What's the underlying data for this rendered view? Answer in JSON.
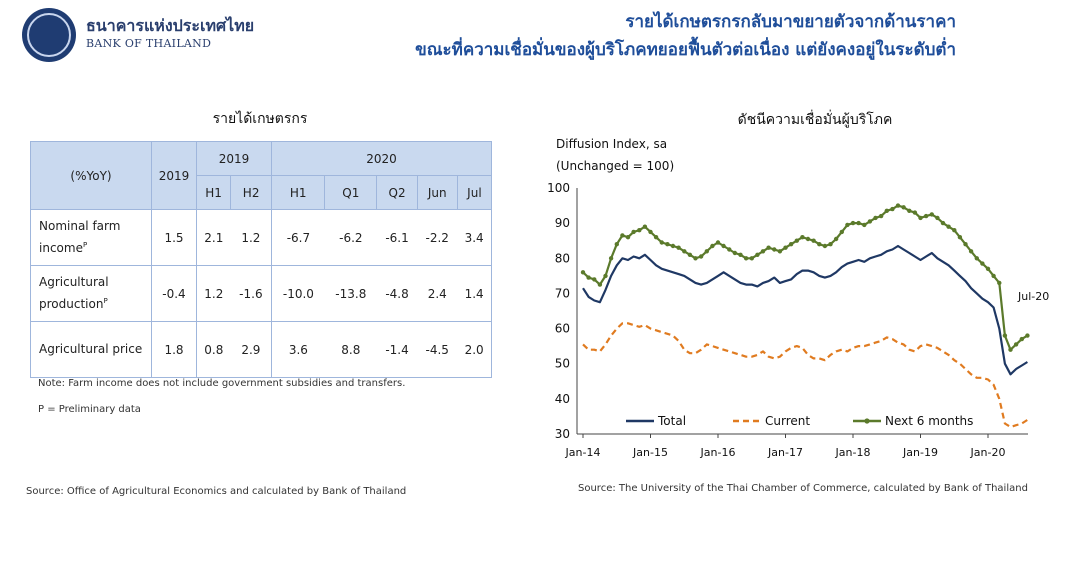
{
  "header": {
    "bank_name_th": "ธนาคารแห่งประเทศไทย",
    "bank_name_en": "BANK OF THAILAND",
    "headline_line1": "รายได้เกษตรกรกลับมาขยายตัวจากด้านราคา",
    "headline_line2": "ขณะที่ความเชื่อมั่นของผู้บริโภคทยอยฟื้นตัวต่อเนื่อง แต่ยังคงอยู่ในระดับต่ำ"
  },
  "farm_table": {
    "title": "รายได้เกษตรกร",
    "unit_header": "(%YoY)",
    "col_2019": "2019",
    "group_2019": "2019",
    "group_2020": "2020",
    "sub_headers": [
      "H1",
      "H2",
      "H1",
      "Q1",
      "Q2",
      "Jun",
      "Jul"
    ],
    "rows": [
      {
        "label_a": "Nominal farm",
        "label_b": "income",
        "sup": "P",
        "values": [
          "1.5",
          "2.1",
          "1.2",
          "-6.7",
          "-6.2",
          "-6.1",
          "-2.2",
          "3.4"
        ]
      },
      {
        "label_a": "Agricultural",
        "label_b": "production",
        "sup": "P",
        "values": [
          "-0.4",
          "1.2",
          "-1.6",
          "-10.0",
          "-13.8",
          "-4.8",
          "2.4",
          "1.4"
        ]
      },
      {
        "label_a": "Agricultural price",
        "label_b": "",
        "sup": "",
        "values": [
          "1.8",
          "0.8",
          "2.9",
          "3.6",
          "8.8",
          "-1.4",
          "-4.5",
          "2.0"
        ]
      }
    ],
    "note": "Note: Farm income does not include government subsidies and transfers.",
    "preliminary": "P = Preliminary data",
    "source": "Source: Office of Agricultural Economics and calculated by Bank of Thailand"
  },
  "chart_data": {
    "type": "line",
    "title": "ดัชนีความเชื่อมั่นผู้บริโภค",
    "ylabel_line1": "Diffusion Index, sa",
    "ylabel_line2": "(Unchanged = 100)",
    "ylim": [
      30,
      100
    ],
    "yticks": [
      30,
      40,
      50,
      60,
      70,
      80,
      90,
      100
    ],
    "x_tick_labels": [
      "Jan-14",
      "Jan-15",
      "Jan-16",
      "Jan-17",
      "Jan-18",
      "Jan-19",
      "Jan-20"
    ],
    "x_start": "Jan-14",
    "x_end": "Jul-20",
    "end_annotation": "Jul-20",
    "legend_position": "bottom",
    "source": "Source: The University of the Thai Chamber of Commerce, calculated by Bank of Thailand",
    "series": [
      {
        "name": "Total",
        "color": "#1f3864",
        "style": "solid",
        "values": [
          71.5,
          69,
          68,
          67.5,
          71,
          75,
          78,
          80,
          79.5,
          80.5,
          80,
          81,
          79.5,
          78,
          77,
          76.5,
          76,
          75.5,
          75,
          74,
          73,
          72.5,
          73,
          74,
          75,
          76,
          75,
          74,
          73,
          72.5,
          72.5,
          72,
          73,
          73.5,
          74.5,
          73,
          73.5,
          74,
          75.5,
          76.5,
          76.5,
          76,
          75,
          74.5,
          75,
          76,
          77.5,
          78.5,
          79,
          79.5,
          79,
          80,
          80.5,
          81,
          82,
          82.5,
          83.5,
          82.5,
          81.5,
          80.5,
          79.5,
          80.5,
          81.5,
          80,
          79,
          78,
          76.5,
          75,
          73.5,
          71.5,
          70,
          68.5,
          67.5,
          66,
          60,
          50,
          47,
          48.5,
          49.5,
          50.5
        ]
      },
      {
        "name": "Current",
        "color": "#e07b20",
        "style": "dashed",
        "values": [
          55.5,
          54,
          54,
          53.5,
          55.5,
          58,
          60,
          61.5,
          61.5,
          61,
          60.5,
          61,
          60,
          59.5,
          59,
          58.5,
          58,
          56.5,
          54,
          53,
          53,
          54,
          55.5,
          55,
          54.5,
          54,
          53.5,
          53,
          52.5,
          52,
          52,
          52.5,
          53.5,
          52,
          51.5,
          52,
          53.5,
          54.5,
          55,
          54.5,
          52.5,
          51.5,
          51.5,
          51,
          52.5,
          53.5,
          54,
          53.5,
          54.5,
          55,
          55,
          55.5,
          56,
          56.5,
          57.5,
          57,
          56,
          55.5,
          54,
          53.5,
          55,
          55.5,
          55,
          54.5,
          53.5,
          52.5,
          51,
          50,
          48.5,
          47,
          46,
          46,
          45.5,
          44,
          40,
          33,
          32,
          32.5,
          33,
          34
        ]
      },
      {
        "name": "Next 6 months",
        "color": "#5b7a2b",
        "style": "solid-markers",
        "values": [
          76,
          74.5,
          74,
          72.5,
          75,
          80,
          84,
          86.5,
          86,
          87.5,
          88,
          89,
          87.5,
          86,
          84.5,
          84,
          83.5,
          83,
          82,
          81,
          80,
          80.5,
          82,
          83.5,
          84.5,
          83.5,
          82.5,
          81.5,
          81,
          80,
          80,
          81,
          82,
          83,
          82.5,
          82,
          83,
          84,
          85,
          86,
          85.5,
          85,
          84,
          83.5,
          84,
          85.5,
          87.5,
          89.5,
          90,
          90,
          89.5,
          90.5,
          91.5,
          92,
          93.5,
          94,
          95,
          94.5,
          93.5,
          93,
          91.5,
          92,
          92.5,
          91.5,
          90,
          89,
          88,
          86,
          84,
          82,
          80,
          78.5,
          77,
          75,
          73,
          58,
          54,
          55.5,
          57,
          58
        ]
      }
    ]
  }
}
